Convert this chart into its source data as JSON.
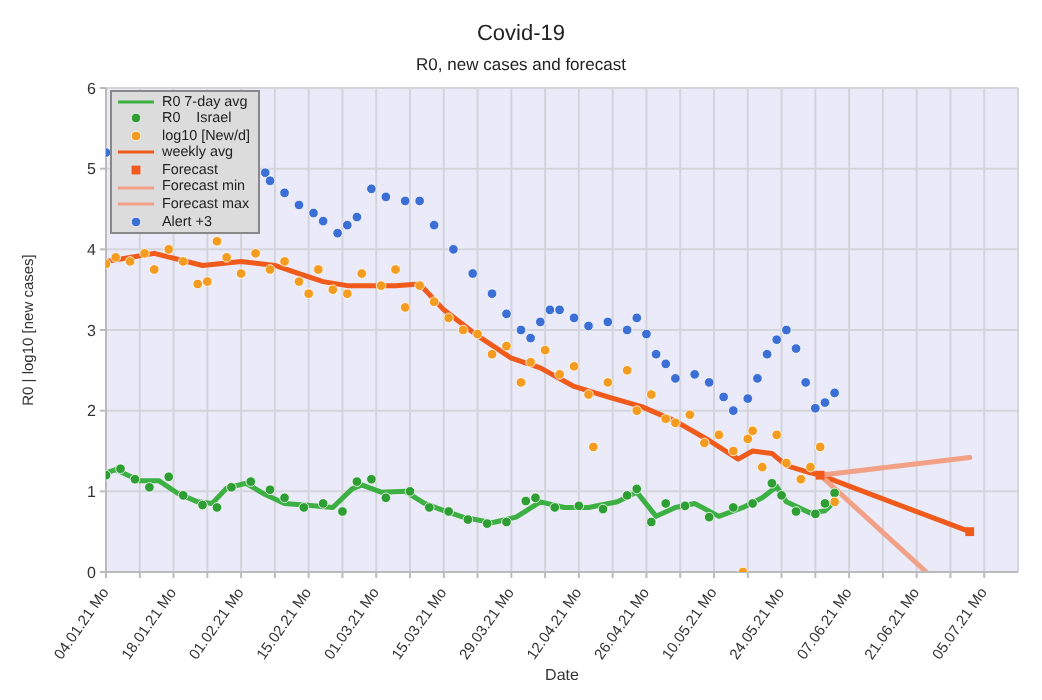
{
  "chart_data": {
    "type": "scatter",
    "title": "Covid-19",
    "subtitle": "R0, new cases and forecast",
    "xlabel": "Date",
    "ylabel": "R0 | log10 [new cases]",
    "xlim": [
      "--01-04",
      "--07-12"
    ],
    "ylim": [
      0,
      6
    ],
    "yticks": [
      0,
      1,
      2,
      3,
      4,
      5,
      6
    ],
    "xticks": [
      {
        "value": "--01-04",
        "label": "04.01.21 Mo"
      },
      {
        "value": "--01-11",
        "label": null
      },
      {
        "value": "--01-18",
        "label": "18.01.21 Mo"
      },
      {
        "value": "--01-25",
        "label": null
      },
      {
        "value": "--02-01",
        "label": "01.02.21 Mo"
      },
      {
        "value": "--02-08",
        "label": null
      },
      {
        "value": "--02-15",
        "label": "15.02.21 Mo"
      },
      {
        "value": "--02-22",
        "label": null
      },
      {
        "value": "--03-01",
        "label": "01.03.21 Mo"
      },
      {
        "value": "--03-08",
        "label": null
      },
      {
        "value": "--03-15",
        "label": "15.03.21 Mo"
      },
      {
        "value": "--03-22",
        "label": null
      },
      {
        "value": "--03-29",
        "label": "29.03.21 Mo"
      },
      {
        "value": "--04-05",
        "label": null
      },
      {
        "value": "--04-12",
        "label": "12.04.21 Mo"
      },
      {
        "value": "--04-19",
        "label": null
      },
      {
        "value": "--04-26",
        "label": "26.04.21 Mo"
      },
      {
        "value": "--05-03",
        "label": null
      },
      {
        "value": "--05-10",
        "label": "10.05.21 Mo"
      },
      {
        "value": "--05-17",
        "label": null
      },
      {
        "value": "--05-24",
        "label": "24.05.21 Mo"
      },
      {
        "value": "--05-31",
        "label": null
      },
      {
        "value": "--06-07",
        "label": "07.06.21 Mo"
      },
      {
        "value": "--06-14",
        "label": null
      },
      {
        "value": "--06-21",
        "label": "21.06.21 Mo"
      },
      {
        "value": "--06-28",
        "label": null
      },
      {
        "value": "--07-05",
        "label": "05.07.21 Mo"
      }
    ],
    "grid": true,
    "legend": "top left",
    "series": [
      {
        "name": "R0 7-day avg",
        "type": "line",
        "marker": "none",
        "color": "#3cb043",
        "x": [
          "--01-04",
          "--01-06",
          "--01-11",
          "--01-15",
          "--01-19",
          "--01-23",
          "--01-26",
          "--01-29",
          "--02-02",
          "--02-06",
          "--02-10",
          "--02-16",
          "--02-20",
          "--02-24",
          "--02-26",
          "--03-02",
          "--03-07",
          "--03-11",
          "--03-15",
          "--03-19",
          "--03-25",
          "--03-30",
          "--04-04",
          "--04-09",
          "--04-14",
          "--04-20",
          "--04-24",
          "--04-28",
          "--05-02",
          "--05-06",
          "--05-11",
          "--05-16",
          "--05-20",
          "--05-23",
          "--05-25",
          "--05-30",
          "--06-02",
          "--06-04"
        ],
        "values": [
          1.23,
          1.27,
          1.13,
          1.13,
          0.97,
          0.87,
          0.85,
          1.04,
          1.1,
          0.96,
          0.85,
          0.82,
          0.8,
          1.03,
          1.08,
          0.99,
          1.0,
          0.85,
          0.76,
          0.68,
          0.61,
          0.68,
          0.87,
          0.8,
          0.8,
          0.87,
          0.99,
          0.69,
          0.8,
          0.85,
          0.69,
          0.8,
          0.92,
          1.06,
          0.87,
          0.73,
          0.76,
          0.87
        ]
      },
      {
        "name": "R0    Israel",
        "marker": "circle",
        "color": "#2e9e34",
        "x": [
          "--01-04",
          "--01-07",
          "--01-10",
          "--01-13",
          "--01-17",
          "--01-20",
          "--01-24",
          "--01-27",
          "--01-30",
          "--02-03",
          "--02-07",
          "--02-10",
          "--02-14",
          "--02-18",
          "--02-22",
          "--02-25",
          "--02-28",
          "--03-03",
          "--03-08",
          "--03-12",
          "--03-16",
          "--03-20",
          "--03-24",
          "--03-28",
          "--04-01",
          "--04-03",
          "--04-07",
          "--04-12",
          "--04-17",
          "--04-22",
          "--04-24",
          "--04-27",
          "--04-30",
          "--05-04",
          "--05-09",
          "--05-14",
          "--05-18",
          "--05-22",
          "--05-24",
          "--05-27",
          "--05-31",
          "--06-02",
          "--06-04"
        ],
        "values": [
          1.2,
          1.28,
          1.15,
          1.05,
          1.18,
          0.95,
          0.83,
          0.8,
          1.05,
          1.12,
          1.02,
          0.92,
          0.8,
          0.85,
          0.75,
          1.12,
          1.15,
          0.92,
          1.0,
          0.8,
          0.75,
          0.65,
          0.6,
          0.62,
          0.88,
          0.92,
          0.8,
          0.82,
          0.78,
          0.95,
          1.03,
          0.62,
          0.85,
          0.82,
          0.68,
          0.8,
          0.85,
          1.1,
          0.95,
          0.75,
          0.72,
          0.85,
          0.98
        ]
      },
      {
        "name": "log10 [New/d]",
        "marker": "circle",
        "color": "#f39c1f",
        "x": [
          "--01-04",
          "--01-06",
          "--01-09",
          "--01-12",
          "--01-14",
          "--01-17",
          "--01-20",
          "--01-23",
          "--01-25",
          "--01-27",
          "--01-29",
          "--02-01",
          "--02-04",
          "--02-07",
          "--02-10",
          "--02-13",
          "--02-15",
          "--02-17",
          "--02-20",
          "--02-23",
          "--02-26",
          "--03-02",
          "--03-05",
          "--03-07",
          "--03-10",
          "--03-13",
          "--03-16",
          "--03-19",
          "--03-22",
          "--03-25",
          "--03-28",
          "--03-31",
          "--04-02",
          "--04-05",
          "--04-08",
          "--04-11",
          "--04-14",
          "--04-15",
          "--04-18",
          "--04-22",
          "--04-24",
          "--04-27",
          "--04-30",
          "--05-02",
          "--05-05",
          "--05-08",
          "--05-11",
          "--05-14",
          "--05-16",
          "--05-17",
          "--05-18",
          "--05-20",
          "--05-23",
          "--05-25",
          "--05-28",
          "--05-30",
          "--06-01",
          "--06-04"
        ],
        "values": [
          3.82,
          3.9,
          3.85,
          3.95,
          3.75,
          4.0,
          3.85,
          3.57,
          3.6,
          4.1,
          3.9,
          3.7,
          3.95,
          3.75,
          3.85,
          3.6,
          3.45,
          3.75,
          3.5,
          3.45,
          3.7,
          3.55,
          3.75,
          3.28,
          3.55,
          3.35,
          3.15,
          3.0,
          2.95,
          2.7,
          2.8,
          2.35,
          2.6,
          2.75,
          2.45,
          2.55,
          2.2,
          1.55,
          2.35,
          2.5,
          2.0,
          2.2,
          1.9,
          1.85,
          1.95,
          1.6,
          1.7,
          1.5,
          0.0,
          1.65,
          1.75,
          1.3,
          1.7,
          1.35,
          1.15,
          1.3,
          1.55,
          0.87
        ]
      },
      {
        "name": "weekly avg",
        "type": "line",
        "marker": "none",
        "color": "#f05a1a",
        "x": [
          "--01-04",
          "--01-14",
          "--01-24",
          "--02-01",
          "--02-08",
          "--02-13",
          "--02-18",
          "--02-23",
          "--03-05",
          "--03-10",
          "--03-15",
          "--03-22",
          "--03-29",
          "--04-04",
          "--04-11",
          "--04-18",
          "--04-25",
          "--05-02",
          "--05-09",
          "--05-15",
          "--05-18",
          "--05-22",
          "--05-25",
          "--05-30",
          "--06-01"
        ],
        "values": [
          3.85,
          3.95,
          3.8,
          3.85,
          3.8,
          3.7,
          3.6,
          3.55,
          3.55,
          3.57,
          3.25,
          2.93,
          2.65,
          2.53,
          2.3,
          2.17,
          2.05,
          1.87,
          1.63,
          1.4,
          1.5,
          1.47,
          1.32,
          1.23,
          1.2
        ]
      },
      {
        "name": "Forecast",
        "type": "line",
        "marker": "square",
        "color": "#f05a1a",
        "x": [
          "--06-01",
          "--07-02"
        ],
        "values": [
          1.2,
          0.5
        ]
      },
      {
        "name": "Forecast min",
        "type": "line",
        "marker": "none",
        "color": "#f2a086",
        "x": [
          "--06-01",
          "--06-23"
        ],
        "values": [
          1.2,
          0.0
        ]
      },
      {
        "name": "Forecast max",
        "type": "line",
        "marker": "none",
        "color": "#f2a086",
        "x": [
          "--06-01",
          "--07-02"
        ],
        "values": [
          1.2,
          1.42
        ]
      },
      {
        "name": "Alert +3",
        "marker": "circle",
        "color": "#3b6fd6",
        "x": [
          "--01-04",
          "--02-06",
          "--02-07",
          "--02-10",
          "--02-13",
          "--02-16",
          "--02-18",
          "--02-21",
          "--02-23",
          "--02-25",
          "--02-28",
          "--03-03",
          "--03-07",
          "--03-10",
          "--03-13",
          "--03-17",
          "--03-21",
          "--03-25",
          "--03-28",
          "--03-31",
          "--04-02",
          "--04-04",
          "--04-06",
          "--04-08",
          "--04-11",
          "--04-14",
          "--04-18",
          "--04-22",
          "--04-24",
          "--04-26",
          "--04-28",
          "--04-30",
          "--05-02",
          "--05-06",
          "--05-09",
          "--05-12",
          "--05-14",
          "--05-17",
          "--05-19",
          "--05-21",
          "--05-23",
          "--05-25",
          "--05-27",
          "--05-29",
          "--05-31",
          "--06-02",
          "--06-04"
        ],
        "values": [
          5.2,
          4.95,
          4.85,
          4.7,
          4.55,
          4.45,
          4.35,
          4.2,
          4.3,
          4.4,
          4.75,
          4.65,
          4.6,
          4.6,
          4.3,
          4.0,
          3.7,
          3.45,
          3.2,
          3.0,
          2.9,
          3.1,
          3.25,
          3.25,
          3.15,
          3.05,
          3.1,
          3.0,
          3.15,
          2.95,
          2.7,
          2.58,
          2.4,
          2.45,
          2.35,
          2.17,
          2.0,
          2.15,
          2.4,
          2.7,
          2.88,
          3.0,
          2.77,
          2.35,
          2.03,
          2.1,
          2.22
        ]
      }
    ]
  }
}
